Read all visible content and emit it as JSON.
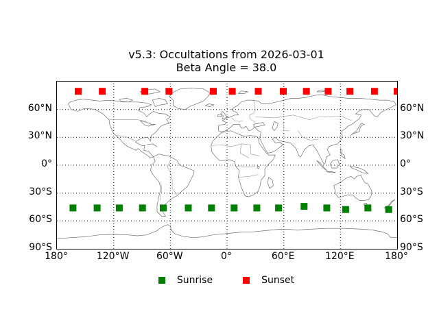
{
  "chart_data": {
    "type": "scatter",
    "title": "v5.3: Occultations from 2026-03-01",
    "subtitle": "Beta Angle = 38.0",
    "projection": "equirectangular-world-map",
    "xlim": [
      -180,
      180
    ],
    "ylim": [
      -90,
      90
    ],
    "grid": "dotted",
    "legend_position": "bottom-center-outside",
    "marker_size_px": 10,
    "series": [
      {
        "name": "Sunrise",
        "marker": "square",
        "color": "#008000",
        "points": [
          {
            "lon": -163.0,
            "lat": -46.0
          },
          {
            "lon": -137.5,
            "lat": -46.0
          },
          {
            "lon": -114.0,
            "lat": -46.0
          },
          {
            "lon": -89.5,
            "lat": -46.0
          },
          {
            "lon": -67.5,
            "lat": -46.0
          },
          {
            "lon": -41.0,
            "lat": -46.0
          },
          {
            "lon": -16.5,
            "lat": -46.0
          },
          {
            "lon": 7.5,
            "lat": -46.0
          },
          {
            "lon": 31.5,
            "lat": -46.0
          },
          {
            "lon": 54.5,
            "lat": -46.0
          },
          {
            "lon": 81.5,
            "lat": -44.3
          },
          {
            "lon": 105.5,
            "lat": -46.0
          },
          {
            "lon": 125.5,
            "lat": -47.7
          },
          {
            "lon": 149.0,
            "lat": -46.0
          },
          {
            "lon": 171.0,
            "lat": -47.7
          }
        ]
      },
      {
        "name": "Sunset",
        "marker": "square",
        "color": "#ff0000",
        "points": [
          {
            "lon": -157.5,
            "lat": 79.5
          },
          {
            "lon": -132.0,
            "lat": 79.5
          },
          {
            "lon": -87.0,
            "lat": 79.5
          },
          {
            "lon": -61.5,
            "lat": 79.5
          },
          {
            "lon": -14.5,
            "lat": 79.5
          },
          {
            "lon": 5.5,
            "lat": 79.5
          },
          {
            "lon": 33.0,
            "lat": 79.5
          },
          {
            "lon": 59.5,
            "lat": 79.5
          },
          {
            "lon": 84.0,
            "lat": 79.5
          },
          {
            "lon": 107.0,
            "lat": 79.5
          },
          {
            "lon": 130.0,
            "lat": 79.5
          },
          {
            "lon": 156.0,
            "lat": 79.5
          },
          {
            "lon": 180.0,
            "lat": 79.5
          }
        ]
      }
    ]
  },
  "axes": {
    "xticks": [
      {
        "lon": -180,
        "label": "180°"
      },
      {
        "lon": -120,
        "label": "120°W"
      },
      {
        "lon": -60,
        "label": "60°W"
      },
      {
        "lon": 0,
        "label": "0°"
      },
      {
        "lon": 60,
        "label": "60°E"
      },
      {
        "lon": 120,
        "label": "120°E"
      },
      {
        "lon": 180,
        "label": "180°"
      }
    ],
    "yticks": [
      {
        "lat": 60,
        "label": "60°N"
      },
      {
        "lat": 30,
        "label": "30°N"
      },
      {
        "lat": 0,
        "label": "0°"
      },
      {
        "lat": -30,
        "label": "30°S"
      },
      {
        "lat": -60,
        "label": "60°S"
      },
      {
        "lat": -90,
        "label": "90°S"
      }
    ],
    "grid_lons": [
      -120,
      -60,
      0,
      60,
      120
    ],
    "grid_lats": [
      60,
      30,
      0,
      -30,
      -60
    ]
  },
  "colors": {
    "background": "#ffffff",
    "frame": "#000000",
    "grid": "#000000",
    "coastline": "#6f6f6f",
    "border": "#9a9a9a",
    "text": "#000000",
    "sunrise": "#008000",
    "sunset": "#ff0000"
  }
}
